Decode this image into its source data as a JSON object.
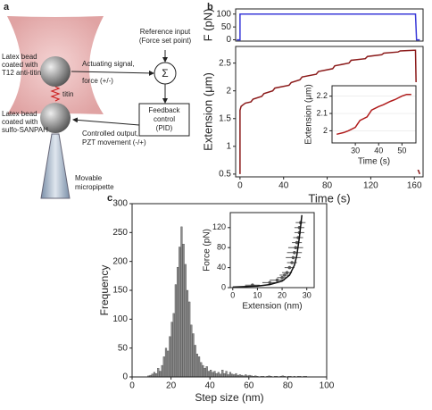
{
  "panel_labels": [
    "a",
    "b",
    "c"
  ],
  "diagram": {
    "reference_input": [
      "Reference input",
      "(Force set point)"
    ],
    "sum_symbol": "Σ",
    "top_bead": [
      "Latex bead",
      "coated with",
      "T12 anti-titin"
    ],
    "actuating_signal": [
      "Actuating signal,",
      "force (+/-)"
    ],
    "titin": "titin",
    "feedback": [
      "Feedback",
      "control",
      "(PID)"
    ],
    "bottom_bead": [
      "Latex bead",
      "coated with",
      "sulfo-SANPAH"
    ],
    "controlled_output": [
      "Controlled output,",
      "PZT movement (-/+)"
    ],
    "micropipette": [
      "Movable",
      "micropipette"
    ]
  },
  "chart_data": [
    {
      "type": "line",
      "ylabel": "F (pN)",
      "color": "#3a3ad8",
      "x": [
        -3,
        0,
        0,
        161,
        162,
        165
      ],
      "values": [
        0,
        0,
        100,
        100,
        0,
        0
      ],
      "xlim": [
        -4,
        168
      ],
      "ylim": [
        -5,
        120
      ],
      "yticks": [
        0,
        50,
        100
      ]
    },
    {
      "type": "line",
      "ylabel": "Extension (μm)",
      "xlabel": "Time (s)",
      "color": "#8b1a1a",
      "x": [
        0,
        0,
        1,
        3,
        5,
        10,
        12,
        20,
        22,
        30,
        32,
        45,
        47,
        55,
        57,
        70,
        72,
        85,
        87,
        100,
        102,
        115,
        117,
        130,
        132,
        145,
        147,
        160,
        161,
        163,
        165
      ],
      "values": [
        0.5,
        1.65,
        1.72,
        1.75,
        1.78,
        1.8,
        1.85,
        1.9,
        1.95,
        2.0,
        2.05,
        2.1,
        2.15,
        2.2,
        2.25,
        2.3,
        2.35,
        2.4,
        2.45,
        2.5,
        2.55,
        2.58,
        2.62,
        2.65,
        2.68,
        2.7,
        2.72,
        2.73,
        2.73,
        0.6,
        0.5
      ],
      "xlim": [
        -4,
        168
      ],
      "ylim": [
        0.45,
        2.8
      ],
      "xticks": [
        0,
        40,
        80,
        120,
        160
      ],
      "yticks": [
        0.5,
        1.0,
        1.5,
        2.0,
        2.5
      ]
    },
    {
      "type": "line",
      "ylabel": "Extension (μm)",
      "xlabel": "Time (s)",
      "color": "#b01c1c",
      "x": [
        22,
        25,
        27,
        30,
        32,
        35,
        37,
        40,
        42,
        45,
        47,
        50,
        52,
        54
      ],
      "values": [
        1.98,
        1.99,
        2.0,
        2.02,
        2.06,
        2.08,
        2.12,
        2.14,
        2.15,
        2.17,
        2.18,
        2.2,
        2.21,
        2.21
      ],
      "xlim": [
        20,
        56
      ],
      "ylim": [
        1.93,
        2.26
      ],
      "xticks": [
        30,
        40,
        50
      ],
      "yticks": [
        2.0,
        2.1,
        2.2
      ]
    },
    {
      "type": "histogram",
      "ylabel": "Frequency",
      "xlabel": "Step size (nm)",
      "color": "#8a8a8a",
      "bins": [
        8,
        9,
        10,
        11,
        12,
        13,
        14,
        15,
        16,
        17,
        18,
        19,
        20,
        21,
        22,
        23,
        24,
        25,
        26,
        27,
        28,
        29,
        30,
        31,
        32,
        33,
        34,
        35,
        36,
        37,
        38,
        39,
        40,
        41,
        42,
        43,
        44,
        45,
        46,
        47,
        48,
        49,
        50,
        51,
        52,
        53,
        54,
        55,
        56,
        57,
        58,
        59,
        60,
        61,
        62,
        63,
        64,
        65,
        66,
        67,
        68,
        69,
        70,
        71,
        72,
        73,
        74,
        75,
        76,
        77,
        78,
        79,
        80,
        81,
        82,
        83,
        84,
        85,
        86,
        87,
        88,
        89,
        90
      ],
      "counts": [
        2,
        3,
        5,
        8,
        6,
        15,
        10,
        20,
        35,
        50,
        45,
        70,
        95,
        110,
        160,
        190,
        225,
        260,
        230,
        195,
        150,
        130,
        90,
        75,
        55,
        40,
        35,
        25,
        20,
        15,
        18,
        10,
        12,
        8,
        10,
        6,
        8,
        5,
        12,
        6,
        10,
        4,
        8,
        5,
        4,
        6,
        3,
        4,
        3,
        2,
        4,
        2,
        3,
        2,
        1,
        2,
        1,
        0,
        1,
        1,
        0,
        1,
        2,
        1,
        0,
        1,
        1,
        0,
        1,
        2,
        1,
        0,
        1,
        1,
        0,
        1,
        0,
        1,
        1,
        0,
        1,
        1
      ],
      "xlim": [
        0,
        100
      ],
      "ylim": [
        0,
        300
      ],
      "xticks": [
        0,
        20,
        40,
        60,
        80,
        100
      ],
      "yticks": [
        0,
        50,
        100,
        150,
        200,
        250,
        300
      ]
    },
    {
      "type": "scatter",
      "ylabel": "Force (pN)",
      "xlabel": "Extension (nm)",
      "color": "#555555",
      "fit_color": "#111111",
      "x": [
        8,
        15,
        18,
        20,
        21,
        22,
        23,
        24,
        24.5,
        25,
        25.5,
        26,
        26.5,
        27,
        27,
        27.5
      ],
      "values": [
        5,
        10,
        15,
        20,
        25,
        30,
        40,
        50,
        60,
        70,
        80,
        90,
        100,
        110,
        120,
        130
      ],
      "xerr": [
        3,
        3,
        3,
        2,
        2,
        2,
        2,
        2,
        3,
        3,
        3,
        2,
        2,
        2,
        2,
        2
      ],
      "fit": {
        "x": [
          0,
          10,
          15,
          20,
          23,
          25,
          26,
          27,
          28
        ],
        "values": [
          1,
          3,
          6,
          13,
          25,
          45,
          65,
          100,
          145
        ]
      },
      "xlim": [
        -1,
        33
      ],
      "ylim": [
        0,
        150
      ],
      "xticks": [
        0,
        10,
        20,
        30
      ],
      "yticks": [
        0,
        40,
        80,
        120
      ]
    }
  ]
}
